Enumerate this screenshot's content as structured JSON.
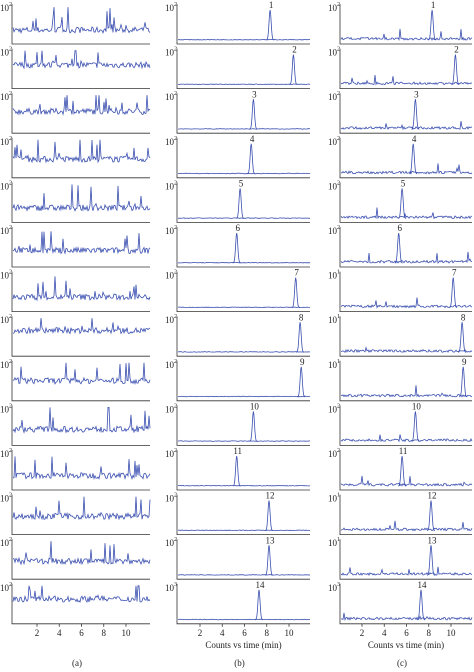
{
  "figure": {
    "x_ticks": [
      2,
      4,
      6,
      8,
      10
    ],
    "x_label": "Counts vs time (min)",
    "columns": [
      {
        "label": "(a)",
        "panels": [
          {
            "y_label": {
              "base": "10",
              "exp": "2"
            }
          },
          {
            "y_label": {
              "base": "10",
              "exp": "2"
            }
          },
          {
            "y_label": {
              "base": "10",
              "exp": "2"
            }
          },
          {
            "y_label": {
              "base": "10",
              "exp": "2"
            }
          },
          {
            "y_label": {
              "base": "10",
              "exp": "2"
            }
          },
          {
            "y_label": {
              "base": "10",
              "exp": "2"
            }
          },
          {
            "y_label": {
              "base": "10",
              "exp": "2"
            }
          },
          {
            "y_label": {
              "base": "10",
              "exp": "2"
            }
          },
          {
            "y_label": {
              "base": "10",
              "exp": "2"
            }
          },
          {
            "y_label": {
              "base": "10",
              "exp": "2"
            }
          },
          {
            "y_label": {
              "base": "10",
              "exp": "2"
            }
          },
          {
            "y_label": {
              "base": "10",
              "exp": "2"
            }
          },
          {
            "y_label": {
              "base": "10",
              "exp": "2"
            }
          },
          {
            "y_label": {
              "base": "10",
              "exp": "2"
            }
          }
        ]
      },
      {
        "label": "(b)",
        "x_label": "Counts vs time (min)",
        "panels": [
          {
            "y_label": {
              "base": "10",
              "exp": "2"
            },
            "peak_label": "1",
            "peak_time": 8.3
          },
          {
            "y_label": {
              "base": "10",
              "exp": "2"
            },
            "peak_label": "2",
            "peak_time": 10.4
          },
          {
            "y_label": {
              "base": "10",
              "exp": "2"
            },
            "peak_label": "3",
            "peak_time": 6.8
          },
          {
            "y_label": {
              "base": "10",
              "exp": "2"
            },
            "peak_label": "4",
            "peak_time": 6.6
          },
          {
            "y_label": {
              "base": "10",
              "exp": "2"
            },
            "peak_label": "5",
            "peak_time": 5.6
          },
          {
            "y_label": {
              "base": "10",
              "exp": "2"
            },
            "peak_label": "6",
            "peak_time": 5.3
          },
          {
            "y_label": {
              "base": "10",
              "exp": "2"
            },
            "peak_label": "7",
            "peak_time": 10.6
          },
          {
            "y_label": {
              "base": "10",
              "exp": "2"
            },
            "peak_label": "8",
            "peak_time": 11.0
          },
          {
            "y_label": {
              "base": "10",
              "exp": "2"
            },
            "peak_label": "9",
            "peak_time": 11.1
          },
          {
            "y_label": {
              "base": "10",
              "exp": "2"
            },
            "peak_label": "10",
            "peak_time": 6.8
          },
          {
            "y_label": {
              "base": "10",
              "exp": "2"
            },
            "peak_label": "11",
            "peak_time": 5.3
          },
          {
            "y_label": {
              "base": "10",
              "exp": "2"
            },
            "peak_label": "12",
            "peak_time": 8.2
          },
          {
            "y_label": {
              "base": "10",
              "exp": "2"
            },
            "peak_label": "13",
            "peak_time": 8.2
          },
          {
            "y_label": {
              "base": "10",
              "exp": "3"
            },
            "peak_label": "14",
            "peak_time": 7.3
          }
        ]
      },
      {
        "label": "(c)",
        "x_label": "Counts vs time (min)",
        "panels": [
          {
            "y_label": {
              "base": "10",
              "exp": "2"
            },
            "peak_label": "1",
            "peak_time": 8.3
          },
          {
            "y_label": {
              "base": "10",
              "exp": "2"
            },
            "peak_label": "2",
            "peak_time": 10.4
          },
          {
            "y_label": {
              "base": "10",
              "exp": "2"
            },
            "peak_label": "3",
            "peak_time": 6.8
          },
          {
            "y_label": {
              "base": "10",
              "exp": "2"
            },
            "peak_label": "4",
            "peak_time": 6.6
          },
          {
            "y_label": {
              "base": "10",
              "exp": "2"
            },
            "peak_label": "5",
            "peak_time": 5.6
          },
          {
            "y_label": {
              "base": "10",
              "exp": "2"
            },
            "peak_label": "6",
            "peak_time": 5.3
          },
          {
            "y_label": {
              "base": "10",
              "exp": "1"
            },
            "peak_label": "7",
            "peak_time": 10.2
          },
          {
            "y_label": {
              "base": "10",
              "exp": "1"
            },
            "peak_label": "8",
            "peak_time": 11.0
          },
          {
            "y_label": {
              "base": "10",
              "exp": "1"
            },
            "peak_label": "9",
            "peak_time": 11.1
          },
          {
            "y_label": {
              "base": "10",
              "exp": "2"
            },
            "peak_label": "10",
            "peak_time": 6.8
          },
          {
            "y_label": {
              "base": "10",
              "exp": "2"
            },
            "peak_label": "11",
            "peak_time": 5.6
          },
          {
            "y_label": {
              "base": "10",
              "exp": "1"
            },
            "peak_label": "12",
            "peak_time": 8.2
          },
          {
            "y_label": {
              "base": "10",
              "exp": "1"
            },
            "peak_label": "13",
            "peak_time": 8.2
          },
          {
            "y_label": {
              "base": "10",
              "exp": "3"
            },
            "peak_label": "14",
            "peak_time": 7.3
          }
        ]
      }
    ]
  }
}
